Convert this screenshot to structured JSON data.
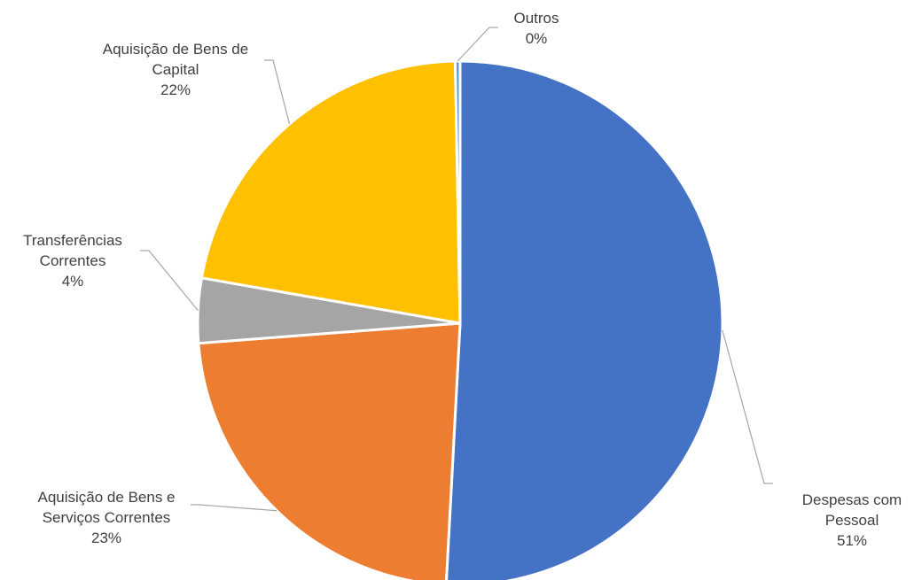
{
  "chart_data": {
    "type": "pie",
    "title": "",
    "series": [
      {
        "values": [
          {
            "label": "Despesas com Pessoal",
            "label_lines": [
              "Despesas com",
              "Pessoal"
            ],
            "value": 51,
            "percent_label": "51%",
            "color": "#4472C4"
          },
          {
            "label": "Aquisição de Bens e Serviços Correntes",
            "label_lines": [
              "Aquisição de Bens e",
              "Serviços Correntes"
            ],
            "value": 23,
            "percent_label": "23%",
            "color": "#ED7D31"
          },
          {
            "label": "Transferências Correntes",
            "label_lines": [
              "Transferências",
              "Correntes"
            ],
            "value": 4,
            "percent_label": "4%",
            "color": "#A5A5A5"
          },
          {
            "label": "Aquisição de Bens de Capital",
            "label_lines": [
              "Aquisição de Bens de",
              "Capital"
            ],
            "value": 22,
            "percent_label": "22%",
            "color": "#FFC000"
          },
          {
            "label": "Outros",
            "label_lines": [
              "Outros"
            ],
            "value": 0.3,
            "percent_label": "0%",
            "color": "#5B9BD5"
          }
        ]
      }
    ],
    "legend": "none",
    "data_labels": "outside with leader lines"
  }
}
